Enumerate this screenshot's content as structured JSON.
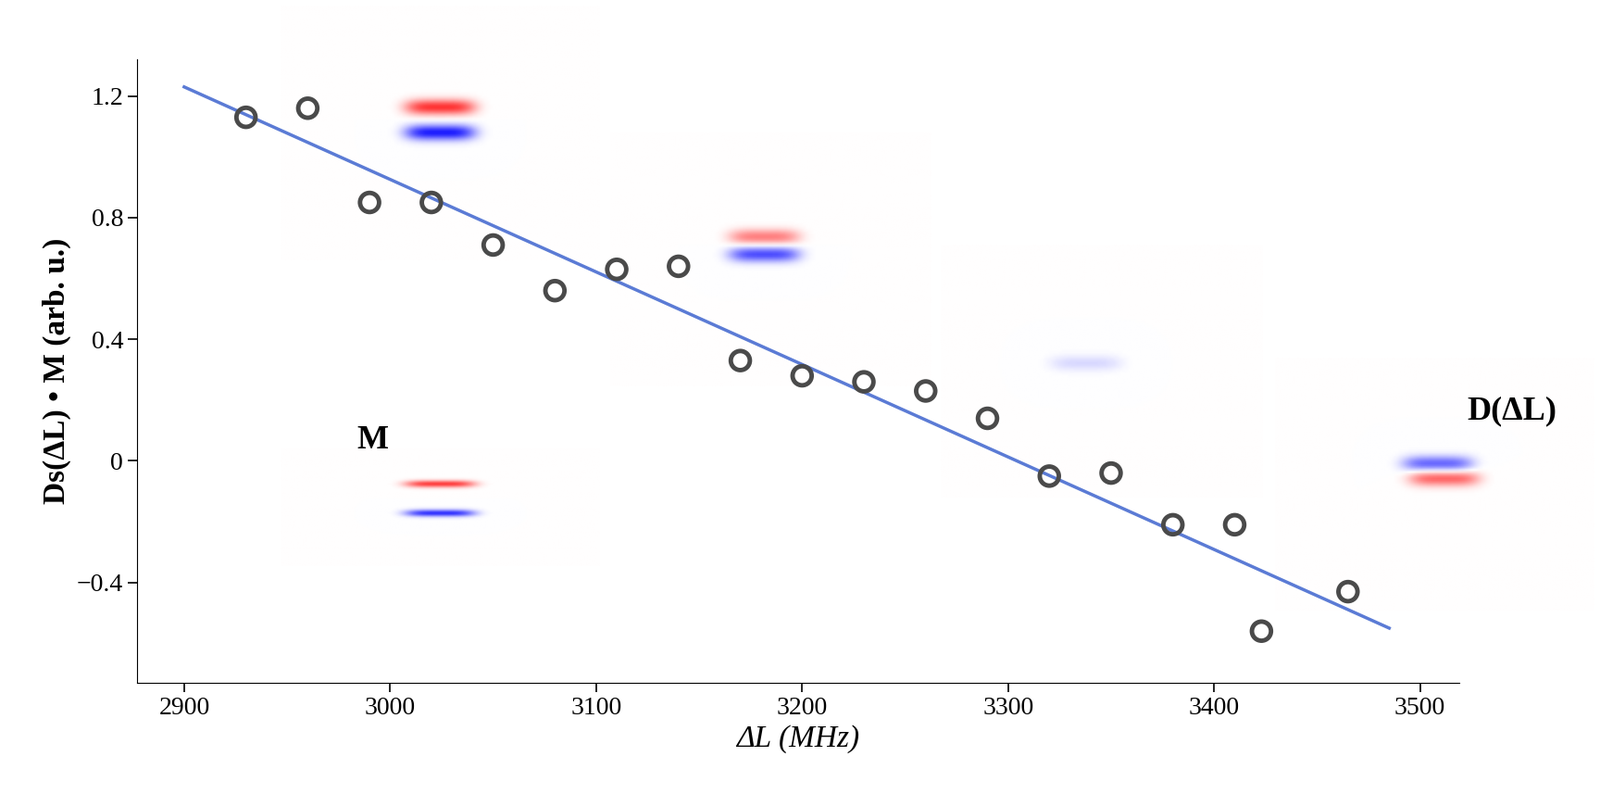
{
  "chart_data": {
    "type": "scatter",
    "x_label": "ΔL (MHz)",
    "y_label": "Ds(ΔL) • M (arb. u.)",
    "annotations": [
      "M",
      "D(ΔL)"
    ],
    "xlim": [
      2877,
      3519
    ],
    "ylim": [
      -0.73,
      1.32
    ],
    "xticks": [
      2900,
      3000,
      3100,
      3200,
      3300,
      3400,
      3500
    ],
    "yticks": [
      {
        "value": -0.4,
        "label": "−0.4"
      },
      0,
      0.4,
      0.8,
      1.2
    ],
    "series": [
      {
        "type": "scatter",
        "color": "#4a4a4a",
        "marker": "o",
        "x": [
          2930,
          2960,
          2990,
          3020,
          3050,
          3080,
          3110,
          3140,
          3170,
          3200,
          3230,
          3260,
          3290,
          3320,
          3350,
          3380,
          3410,
          3423,
          3465
        ],
        "values": [
          1.13,
          1.16,
          0.85,
          0.85,
          0.71,
          0.56,
          0.63,
          0.64,
          0.33,
          0.28,
          0.26,
          0.23,
          0.14,
          -0.05,
          -0.04,
          -0.21,
          -0.21,
          -0.56,
          -0.43
        ]
      },
      {
        "type": "line",
        "color": "#5b7bd5",
        "line_style": "solid",
        "x": [
          2900,
          3485
        ],
        "values": [
          1.23,
          -0.55
        ]
      }
    ]
  }
}
